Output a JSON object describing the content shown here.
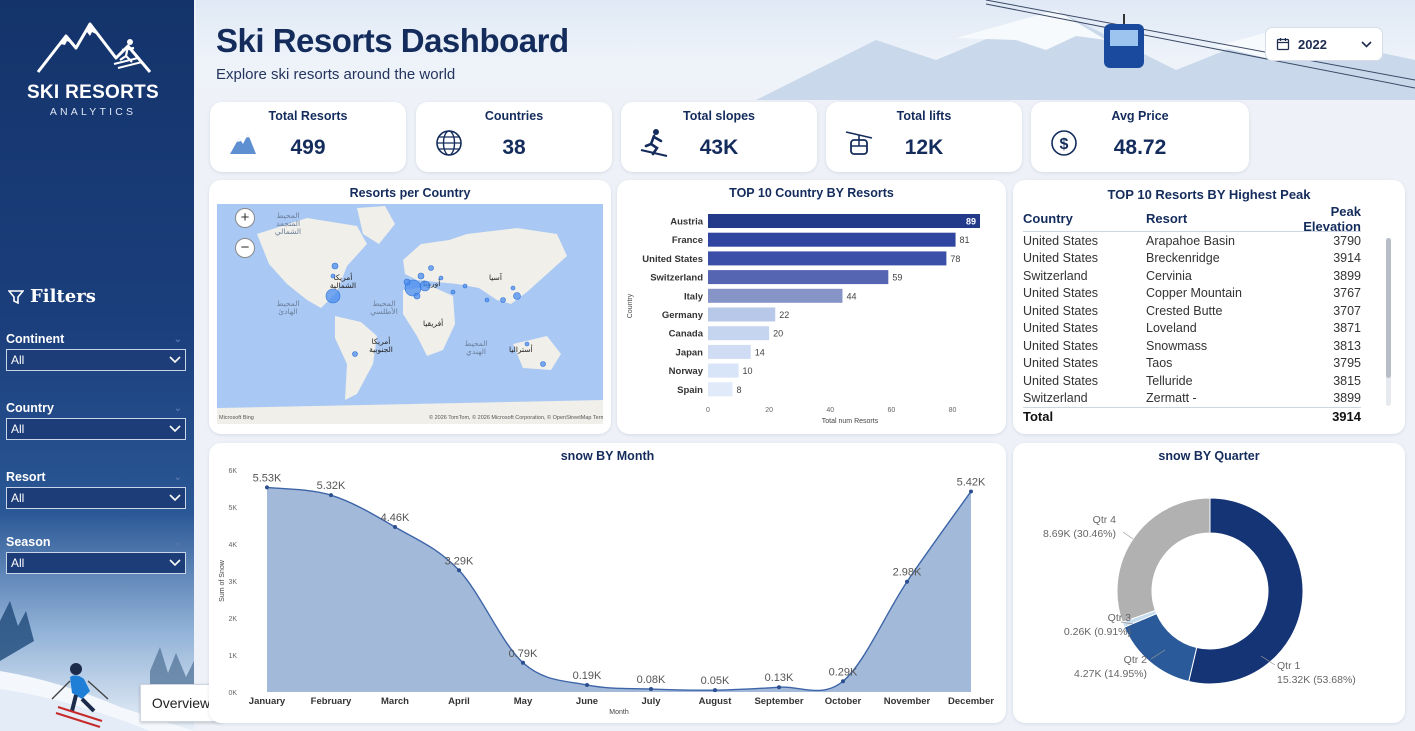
{
  "brand": {
    "title": "SKI RESORTS",
    "subtitle": "ANALYTICS"
  },
  "header": {
    "title": "Ski Resorts Dashboard",
    "subtitle": "Explore ski resorts around the world",
    "year": "2022"
  },
  "filters": {
    "title": "Filters",
    "items": [
      {
        "label": "Continent",
        "value": "All"
      },
      {
        "label": "Country",
        "value": "All"
      },
      {
        "label": "Resort",
        "value": "All"
      },
      {
        "label": "Season",
        "value": "All"
      }
    ]
  },
  "kpis": [
    {
      "label": "Total Resorts",
      "value": "499",
      "icon": "mountain-icon"
    },
    {
      "label": "Countries",
      "value": "38",
      "icon": "globe-icon"
    },
    {
      "label": "Total slopes",
      "value": "43K",
      "icon": "skier-icon"
    },
    {
      "label": "Total lifts",
      "value": "12K",
      "icon": "cable-car-icon"
    },
    {
      "label": "Avg Price",
      "value": "48.72",
      "icon": "dollar-icon"
    }
  ],
  "map_panel": {
    "title": "Resorts per Country",
    "labels": [
      {
        "text": "أمريكا الشمالية",
        "cls": ""
      },
      {
        "text": "أوروبا",
        "cls": ""
      },
      {
        "text": "آسيا",
        "cls": ""
      },
      {
        "text": "أفريقيا",
        "cls": ""
      },
      {
        "text": "أمريكا الجنوبية",
        "cls": ""
      },
      {
        "text": "أستراليا",
        "cls": ""
      },
      {
        "text": "المحيط الأطلسي",
        "cls": "sea"
      },
      {
        "text": "المحيط الهادئ",
        "cls": "sea"
      },
      {
        "text": "المحيط الهندي",
        "cls": "sea"
      },
      {
        "text": "المحيط المتجمد الشمالي",
        "cls": "sea"
      }
    ],
    "footer_left": "Microsoft Bing",
    "footer_right": "© 2026 TomTom, © 2026 Microsoft Corporation, © OpenStreetMap Terms"
  },
  "footer": {
    "overview_tab": "Overview"
  },
  "chart_data": [
    {
      "type": "bar",
      "title": "TOP 10 Country BY Resorts",
      "xlabel": "Total num Resorts",
      "ylabel": "Country",
      "categories": [
        "Austria",
        "France",
        "United States",
        "Switzerland",
        "Italy",
        "Germany",
        "Canada",
        "Japan",
        "Norway",
        "Spain"
      ],
      "values": [
        89,
        81,
        78,
        59,
        44,
        22,
        20,
        14,
        10,
        8
      ],
      "xlim": [
        0,
        89
      ],
      "xticks": [
        0,
        20,
        40,
        60,
        80
      ],
      "colors": [
        "#233a8b",
        "#2f45a0",
        "#3b4fa8",
        "#5565b2",
        "#8794c8",
        "#b8c8e8",
        "#c6d5ef",
        "#cfdcf3",
        "#d8e4f7",
        "#e0eaf9"
      ]
    },
    {
      "type": "area",
      "title": "snow BY Month",
      "xlabel": "Month",
      "ylabel": "Sum of Snow",
      "categories": [
        "January",
        "February",
        "March",
        "April",
        "May",
        "June",
        "July",
        "August",
        "September",
        "October",
        "November",
        "December"
      ],
      "values": [
        5530,
        5320,
        4460,
        3290,
        790,
        190,
        80,
        50,
        130,
        290,
        2980,
        5420
      ],
      "labels": [
        "5.53K",
        "5.32K",
        "4.46K",
        "3.29K",
        "0.79K",
        "0.19K",
        "0.08K",
        "0.05K",
        "0.13K",
        "0.29K",
        "2.98K",
        "5.42K"
      ],
      "ylim": [
        0,
        6000
      ],
      "yticks": [
        "0K",
        "1K",
        "2K",
        "3K",
        "4K",
        "5K",
        "6K"
      ],
      "color": "#a3b9d9",
      "line_color": "#3d65a8"
    },
    {
      "type": "pie",
      "title": "snow BY Quarter",
      "categories": [
        "Qtr 1",
        "Qtr 2",
        "Qtr 3",
        "Qtr 4"
      ],
      "values": [
        15320,
        4270,
        260,
        8690
      ],
      "labels": [
        "15.32K (53.68%)",
        "4.27K (14.95%)",
        "0.26K (0.91%)",
        "8.69K (30.46%)"
      ],
      "colors": [
        "#143476",
        "#2a5a9a",
        "#c6dcef",
        "#b1b1b1"
      ]
    }
  ],
  "peak_table": {
    "title": "TOP 10 Resorts BY Highest Peak",
    "columns": [
      "Country",
      "Resort",
      "Peak Elevation"
    ],
    "rows": [
      [
        "United States",
        "Arapahoe Basin",
        "3790"
      ],
      [
        "United States",
        "Breckenridge",
        "3914"
      ],
      [
        "Switzerland",
        "Cervinia",
        "3899"
      ],
      [
        "United States",
        "Copper Mountain",
        "3767"
      ],
      [
        "United States",
        "Crested Butte",
        "3707"
      ],
      [
        "United States",
        "Loveland",
        "3871"
      ],
      [
        "United States",
        "Snowmass",
        "3813"
      ],
      [
        "United States",
        "Taos",
        "3795"
      ],
      [
        "United States",
        "Telluride",
        "3815"
      ],
      [
        "Switzerland",
        "Zermatt -",
        "3899"
      ]
    ],
    "total_label": "Total",
    "total_value": "3914"
  }
}
